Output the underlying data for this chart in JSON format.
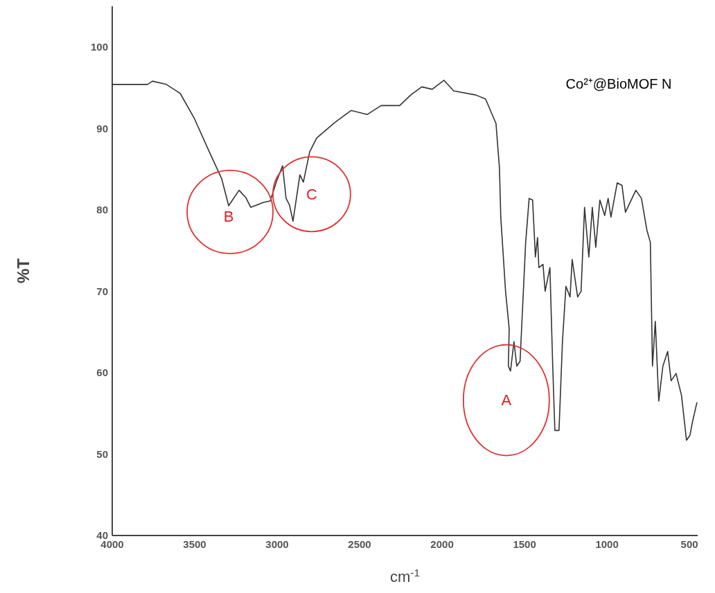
{
  "chart_data": {
    "type": "line",
    "xlabel": "cm$^{-1}$",
    "ylabel": "%T",
    "xlim": [
      4000,
      450
    ],
    "xticks": [
      4000,
      3500,
      3000,
      2500,
      2000,
      1500,
      1000,
      500
    ],
    "ylim": [
      40,
      105
    ],
    "yticks": [
      40,
      50,
      60,
      70,
      80,
      90,
      100
    ],
    "grid": false,
    "marker": "none",
    "line_style": "solid",
    "series": [
      {
        "name": "Co²⁺@BioMOF N",
        "color": "#333333",
        "x": [
          4000,
          3786,
          3756,
          3672,
          3588,
          3504,
          3420,
          3336,
          3294,
          3231,
          3190,
          3160,
          3084,
          3042,
          3000,
          2967,
          2946,
          2925,
          2904,
          2862,
          2841,
          2803,
          2761,
          2652,
          2551,
          2454,
          2370,
          2257,
          2190,
          2123,
          2060,
          1988,
          1929,
          1795,
          1736,
          1673,
          1652,
          1644,
          1615,
          1593,
          1598,
          1585,
          1564,
          1547,
          1527,
          1493,
          1472,
          1451,
          1434,
          1421,
          1413,
          1388,
          1375,
          1346,
          1329,
          1316,
          1291,
          1270,
          1249,
          1224,
          1211,
          1178,
          1157,
          1136,
          1110,
          1089,
          1068,
          1043,
          1014,
          993,
          976,
          938,
          909,
          888,
          825,
          791,
          758,
          737,
          724,
          707,
          686,
          661,
          632,
          611,
          581,
          548,
          518,
          497,
          480,
          455
        ],
        "values": [
          95.4,
          95.4,
          95.8,
          95.4,
          94.3,
          91.3,
          87.5,
          83.8,
          80.5,
          82.4,
          81.5,
          80.3,
          80.9,
          81.1,
          83.7,
          85.4,
          81.4,
          80.6,
          78.6,
          84.3,
          83.4,
          87.1,
          88.8,
          90.7,
          92.2,
          91.7,
          92.8,
          92.8,
          94.1,
          95.1,
          94.8,
          95.9,
          94.6,
          94.1,
          93.6,
          90.6,
          85.1,
          79.1,
          70,
          65.4,
          60.8,
          60.2,
          63.8,
          60.8,
          61.4,
          76,
          81.4,
          81.2,
          74.2,
          76.6,
          72.9,
          73.3,
          70,
          72.9,
          60.8,
          52.9,
          52.9,
          63.8,
          70.6,
          69.3,
          73.9,
          69.3,
          70,
          80.3,
          74.2,
          80.3,
          75.4,
          81.2,
          79.3,
          81.4,
          79.1,
          83.3,
          83,
          79.7,
          82.4,
          81.4,
          77.5,
          76,
          60.8,
          66.3,
          56.5,
          60.8,
          62.6,
          59,
          59.9,
          57.2,
          51.7,
          52.3,
          54.1,
          56.3
        ]
      }
    ],
    "annotations": [
      {
        "text": "B",
        "x": 3294,
        "y": 80.5
      },
      {
        "text": "C",
        "x": 2904,
        "y": 78.6
      },
      {
        "text": "A",
        "x": 1585,
        "y": 60.2
      }
    ]
  }
}
